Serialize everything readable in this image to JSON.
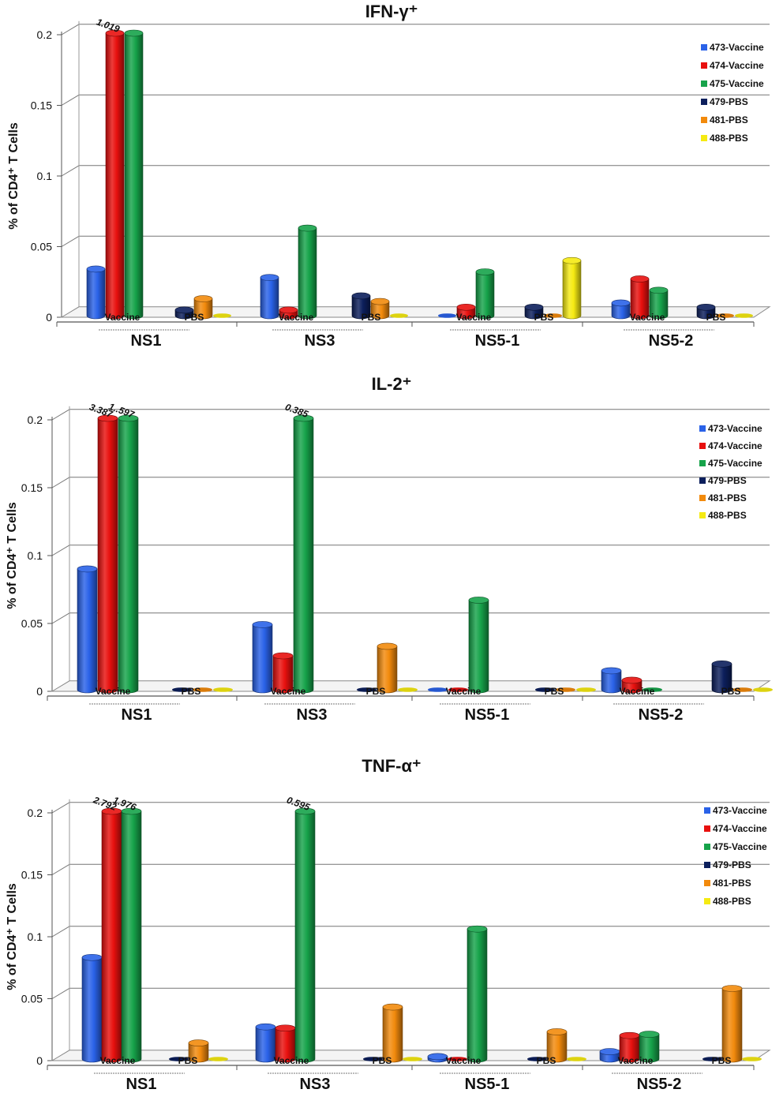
{
  "chart_data": [
    {
      "type": "bar",
      "title": "IFN-γ⁺",
      "ylabel": "% of CD4⁺ T Cells",
      "ylim": [
        0,
        0.2
      ],
      "yticks": [
        "0",
        "0.05",
        "0.1",
        "0.15",
        "0.2"
      ],
      "categories": [
        "NS1",
        "NS3",
        "NS5-1",
        "NS5-2"
      ],
      "sublabels": [
        "Vaccine",
        "PBS"
      ],
      "series": [
        {
          "name": "473-Vaccine",
          "color": "#2a62e8",
          "values": [
            0.033,
            0.027,
            0.0,
            0.009
          ]
        },
        {
          "name": "474-Vaccine",
          "color": "#e8100e",
          "values": [
            0.2,
            0.004,
            0.006,
            0.026
          ]
        },
        {
          "name": "475-Vaccine",
          "color": "#16a34a",
          "values": [
            0.2,
            0.062,
            0.031,
            0.018
          ]
        },
        {
          "name": "479-PBS",
          "color": "#0c1f5c",
          "values": [
            0.004,
            0.014,
            0.006,
            0.006
          ]
        },
        {
          "name": "481-PBS",
          "color": "#f28a0c",
          "values": [
            0.012,
            0.01,
            0.0,
            0.0
          ]
        },
        {
          "name": "488-PBS",
          "color": "#f5ea12",
          "values": [
            0.0,
            0.0,
            0.039,
            0.0
          ]
        }
      ],
      "annotations": [
        {
          "category": "NS1",
          "series": "474-Vaccine",
          "text": "1.019"
        }
      ]
    },
    {
      "type": "bar",
      "title": "IL-2⁺",
      "ylabel": "% of CD4⁺ T Cells",
      "ylim": [
        0,
        0.2
      ],
      "yticks": [
        "0",
        "0.05",
        "0.1",
        "0.15",
        "0.2"
      ],
      "categories": [
        "NS1",
        "NS3",
        "NS5-1",
        "NS5-2"
      ],
      "sublabels": [
        "Vaccine",
        "PBS"
      ],
      "series": [
        {
          "name": "473-Vaccine",
          "color": "#2a62e8",
          "values": [
            0.089,
            0.048,
            0.0,
            0.014
          ]
        },
        {
          "name": "474-Vaccine",
          "color": "#e8100e",
          "values": [
            0.2,
            0.025,
            0.0,
            0.007
          ]
        },
        {
          "name": "475-Vaccine",
          "color": "#16a34a",
          "values": [
            0.2,
            0.2,
            0.066,
            0.0
          ]
        },
        {
          "name": "479-PBS",
          "color": "#0c1f5c",
          "values": [
            0.0,
            0.0,
            0.0,
            0.019
          ]
        },
        {
          "name": "481-PBS",
          "color": "#f28a0c",
          "values": [
            0.0,
            0.032,
            0.0,
            0.0
          ]
        },
        {
          "name": "488-PBS",
          "color": "#f5ea12",
          "values": [
            0.0,
            0.0,
            0.0,
            0.0
          ]
        }
      ],
      "annotations": [
        {
          "category": "NS1",
          "series": "474-Vaccine",
          "text": "3.387"
        },
        {
          "category": "NS1",
          "series": "475-Vaccine",
          "text": "1..597"
        },
        {
          "category": "NS3",
          "series": "475-Vaccine",
          "text": "0.385"
        }
      ]
    },
    {
      "type": "bar",
      "title": "TNF-α⁺",
      "ylabel": "% of CD4⁺ T Cells",
      "ylim": [
        0,
        0.2
      ],
      "yticks": [
        "0",
        "0.05",
        "0.1",
        "0.15",
        "0.2"
      ],
      "categories": [
        "NS1",
        "NS3",
        "NS5-1",
        "NS5-2"
      ],
      "sublabels": [
        "Vaccine",
        "PBS"
      ],
      "series": [
        {
          "name": "473-Vaccine",
          "color": "#2a62e8",
          "values": [
            0.082,
            0.026,
            0.002,
            0.006
          ]
        },
        {
          "name": "474-Vaccine",
          "color": "#e8100e",
          "values": [
            0.2,
            0.025,
            0.0,
            0.019
          ]
        },
        {
          "name": "475-Vaccine",
          "color": "#16a34a",
          "values": [
            0.2,
            0.2,
            0.105,
            0.02
          ]
        },
        {
          "name": "479-PBS",
          "color": "#0c1f5c",
          "values": [
            0.0,
            0.0,
            0.0,
            0.0
          ]
        },
        {
          "name": "481-PBS",
          "color": "#f28a0c",
          "values": [
            0.013,
            0.042,
            0.022,
            0.057
          ]
        },
        {
          "name": "488-PBS",
          "color": "#f5ea12",
          "values": [
            0.0,
            0.0,
            0.0,
            0.0
          ]
        }
      ],
      "annotations": [
        {
          "category": "NS1",
          "series": "474-Vaccine",
          "text": "2.792"
        },
        {
          "category": "NS1",
          "series": "475-Vaccine",
          "text": "1.976"
        },
        {
          "category": "NS3",
          "series": "475-Vaccine",
          "text": "0.595"
        }
      ]
    }
  ]
}
